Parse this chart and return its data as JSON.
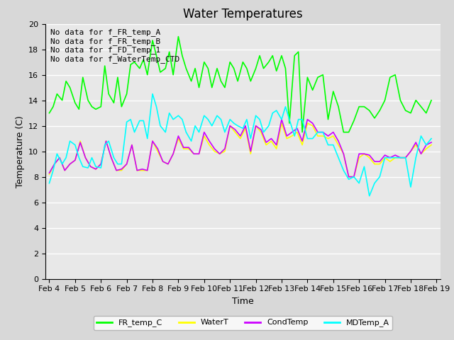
{
  "title": "Water Temperatures",
  "xlabel": "Time",
  "ylabel": "Temperature (C)",
  "ylim": [
    0,
    20
  ],
  "yticks": [
    0,
    2,
    4,
    6,
    8,
    10,
    12,
    14,
    16,
    18,
    20
  ],
  "series": {
    "FR_temp_C": {
      "color": "#00ff00",
      "linewidth": 1.2,
      "x_days": [
        4.0,
        4.15,
        4.3,
        4.5,
        4.65,
        4.8,
        5.0,
        5.15,
        5.3,
        5.5,
        5.65,
        5.8,
        6.0,
        6.15,
        6.3,
        6.5,
        6.65,
        6.8,
        7.0,
        7.15,
        7.3,
        7.5,
        7.65,
        7.8,
        8.0,
        8.15,
        8.3,
        8.5,
        8.65,
        8.8,
        9.0,
        9.15,
        9.3,
        9.5,
        9.65,
        9.8,
        10.0,
        10.15,
        10.3,
        10.5,
        10.65,
        10.8,
        11.0,
        11.15,
        11.3,
        11.5,
        11.65,
        11.8,
        12.0,
        12.15,
        12.3,
        12.5,
        12.65,
        12.8,
        13.0,
        13.15,
        13.3,
        13.5,
        13.65,
        13.8,
        14.0,
        14.2,
        14.4,
        14.6,
        14.8,
        15.0,
        15.2,
        15.4,
        15.6,
        15.8,
        16.0,
        16.2,
        16.4,
        16.6,
        16.8,
        17.0,
        17.2,
        17.4,
        17.6,
        17.8,
        18.0,
        18.2,
        18.4,
        18.6,
        18.8
      ],
      "y": [
        13.0,
        13.5,
        14.5,
        14.0,
        15.5,
        15.0,
        13.8,
        13.3,
        15.8,
        14.0,
        13.5,
        13.3,
        13.5,
        16.7,
        14.5,
        13.8,
        15.8,
        13.5,
        14.5,
        16.8,
        17.0,
        16.5,
        17.2,
        16.0,
        18.7,
        17.5,
        16.2,
        16.5,
        17.8,
        16.0,
        19.0,
        17.5,
        16.5,
        15.5,
        16.5,
        15.0,
        17.0,
        16.5,
        15.0,
        16.5,
        15.5,
        15.0,
        17.0,
        16.5,
        15.5,
        17.0,
        16.5,
        15.5,
        16.5,
        17.5,
        16.5,
        17.0,
        17.5,
        16.3,
        17.5,
        16.5,
        12.2,
        17.5,
        17.8,
        11.5,
        15.8,
        14.8,
        15.8,
        16.0,
        12.5,
        14.7,
        13.5,
        11.5,
        11.5,
        12.4,
        13.5,
        13.5,
        13.2,
        12.6,
        13.2,
        14.0,
        15.8,
        16.0,
        14.0,
        13.2,
        13.0,
        14.0,
        13.5,
        13.0,
        14.0
      ]
    },
    "WaterT": {
      "color": "#ffff00",
      "linewidth": 1.2,
      "x_days": [
        4.0,
        4.2,
        4.4,
        4.6,
        4.8,
        5.0,
        5.2,
        5.4,
        5.6,
        5.8,
        6.0,
        6.2,
        6.4,
        6.6,
        6.8,
        7.0,
        7.2,
        7.4,
        7.6,
        7.8,
        8.0,
        8.2,
        8.4,
        8.6,
        8.8,
        9.0,
        9.2,
        9.4,
        9.6,
        9.8,
        10.0,
        10.2,
        10.4,
        10.6,
        10.8,
        11.0,
        11.2,
        11.4,
        11.6,
        11.8,
        12.0,
        12.2,
        12.4,
        12.6,
        12.8,
        13.0,
        13.2,
        13.4,
        13.6,
        13.8,
        14.0,
        14.2,
        14.4,
        14.6,
        14.8,
        15.0,
        15.2,
        15.4,
        15.6,
        15.8,
        16.0,
        16.2,
        16.4,
        16.6,
        16.8,
        17.0,
        17.2,
        17.4,
        17.6,
        17.8,
        18.0,
        18.2,
        18.4,
        18.6,
        18.8
      ],
      "y": [
        8.2,
        9.0,
        9.5,
        8.5,
        9.0,
        9.3,
        10.8,
        9.5,
        8.8,
        8.6,
        9.0,
        10.8,
        9.5,
        8.5,
        8.5,
        9.0,
        10.5,
        8.5,
        8.5,
        8.5,
        10.8,
        10.0,
        9.2,
        9.0,
        9.8,
        11.0,
        10.2,
        10.2,
        9.8,
        9.8,
        11.2,
        10.5,
        10.0,
        9.8,
        10.0,
        12.0,
        11.5,
        11.0,
        11.8,
        9.8,
        12.0,
        11.5,
        10.5,
        10.8,
        10.2,
        12.2,
        11.0,
        11.2,
        11.5,
        10.5,
        12.2,
        12.0,
        11.2,
        11.2,
        11.0,
        11.2,
        10.5,
        9.8,
        8.0,
        8.0,
        9.5,
        9.8,
        9.5,
        9.0,
        9.0,
        9.5,
        9.2,
        9.5,
        9.5,
        9.5,
        10.0,
        10.5,
        9.8,
        10.2,
        10.5
      ]
    },
    "CondTemp": {
      "color": "#cc00ff",
      "linewidth": 1.2,
      "x_days": [
        4.0,
        4.2,
        4.4,
        4.6,
        4.8,
        5.0,
        5.2,
        5.4,
        5.6,
        5.8,
        6.0,
        6.2,
        6.4,
        6.6,
        6.8,
        7.0,
        7.2,
        7.4,
        7.6,
        7.8,
        8.0,
        8.2,
        8.4,
        8.6,
        8.8,
        9.0,
        9.2,
        9.4,
        9.6,
        9.8,
        10.0,
        10.2,
        10.4,
        10.6,
        10.8,
        11.0,
        11.2,
        11.4,
        11.6,
        11.8,
        12.0,
        12.2,
        12.4,
        12.6,
        12.8,
        13.0,
        13.2,
        13.4,
        13.6,
        13.8,
        14.0,
        14.2,
        14.4,
        14.6,
        14.8,
        15.0,
        15.2,
        15.4,
        15.6,
        15.8,
        16.0,
        16.2,
        16.4,
        16.6,
        16.8,
        17.0,
        17.2,
        17.4,
        17.6,
        17.8,
        18.0,
        18.2,
        18.4,
        18.6,
        18.8
      ],
      "y": [
        8.3,
        9.0,
        9.5,
        8.5,
        9.0,
        9.3,
        10.7,
        9.5,
        8.8,
        8.6,
        9.0,
        10.8,
        9.5,
        8.5,
        8.6,
        9.0,
        10.5,
        8.5,
        8.6,
        8.5,
        10.8,
        10.2,
        9.2,
        9.0,
        9.8,
        11.2,
        10.3,
        10.3,
        9.8,
        9.8,
        11.5,
        10.8,
        10.2,
        9.8,
        10.2,
        12.0,
        11.7,
        11.2,
        12.0,
        10.0,
        12.0,
        11.7,
        10.7,
        11.0,
        10.5,
        12.5,
        11.2,
        11.5,
        11.8,
        10.8,
        12.5,
        12.2,
        11.5,
        11.5,
        11.2,
        11.5,
        10.8,
        9.8,
        8.0,
        8.0,
        9.8,
        9.8,
        9.7,
        9.2,
        9.2,
        9.7,
        9.5,
        9.7,
        9.5,
        9.5,
        10.0,
        10.7,
        9.8,
        10.5,
        10.7
      ]
    },
    "MDTemp_A": {
      "color": "#00ffff",
      "linewidth": 1.2,
      "x_days": [
        4.0,
        4.15,
        4.3,
        4.5,
        4.65,
        4.8,
        5.0,
        5.15,
        5.3,
        5.5,
        5.65,
        5.8,
        6.0,
        6.15,
        6.3,
        6.5,
        6.65,
        6.8,
        7.0,
        7.15,
        7.3,
        7.5,
        7.65,
        7.8,
        8.0,
        8.15,
        8.3,
        8.5,
        8.65,
        8.8,
        9.0,
        9.15,
        9.3,
        9.5,
        9.65,
        9.8,
        10.0,
        10.15,
        10.3,
        10.5,
        10.65,
        10.8,
        11.0,
        11.15,
        11.3,
        11.5,
        11.65,
        11.8,
        12.0,
        12.15,
        12.3,
        12.5,
        12.65,
        12.8,
        13.0,
        13.15,
        13.3,
        13.5,
        13.65,
        13.8,
        14.0,
        14.2,
        14.4,
        14.6,
        14.8,
        15.0,
        15.2,
        15.4,
        15.6,
        15.8,
        16.0,
        16.2,
        16.4,
        16.6,
        16.8,
        17.0,
        17.2,
        17.4,
        17.6,
        17.8,
        18.0,
        18.2,
        18.4,
        18.6,
        18.8
      ],
      "y": [
        7.5,
        8.5,
        9.8,
        9.0,
        9.5,
        10.8,
        10.5,
        9.5,
        8.8,
        8.7,
        9.5,
        8.8,
        8.7,
        10.5,
        10.8,
        9.5,
        9.0,
        9.0,
        12.3,
        12.5,
        11.5,
        12.4,
        12.4,
        11.0,
        14.5,
        13.5,
        12.0,
        11.5,
        13.0,
        12.5,
        12.8,
        12.5,
        11.5,
        10.8,
        12.0,
        11.5,
        12.8,
        12.5,
        12.0,
        12.8,
        12.5,
        11.5,
        12.5,
        12.2,
        12.0,
        11.8,
        12.5,
        11.0,
        12.8,
        12.5,
        11.5,
        12.0,
        13.0,
        13.2,
        12.5,
        13.5,
        12.5,
        11.2,
        12.5,
        12.5,
        11.0,
        11.0,
        11.5,
        11.5,
        10.5,
        10.5,
        9.5,
        8.5,
        7.8,
        8.0,
        7.5,
        8.8,
        6.5,
        7.5,
        8.0,
        9.5,
        9.5,
        9.5,
        9.5,
        9.5,
        7.2,
        9.5,
        11.2,
        10.5,
        11.0
      ]
    }
  },
  "legend_entries": [
    "FR_temp_C",
    "WaterT",
    "CondTemp",
    "MDTemp_A"
  ],
  "legend_colors": [
    "#00ff00",
    "#ffff00",
    "#cc00ff",
    "#00ffff"
  ],
  "xticklabels": [
    "Feb 4",
    "Feb 5",
    "Feb 6",
    "Feb 7",
    "Feb 8",
    "Feb 9",
    "Feb 10",
    "Feb 11",
    "Feb 12",
    "Feb 13",
    "Feb 14",
    "Feb 15",
    "Feb 16",
    "Feb 17",
    "Feb 18",
    "Feb 19"
  ],
  "xtick_positions": [
    4,
    5,
    6,
    7,
    8,
    9,
    10,
    11,
    12,
    13,
    14,
    15,
    16,
    17,
    18,
    19
  ],
  "annotation_lines": [
    "No data for f_FR_temp_A",
    "No data for f_FR_temp_B",
    "No data for f_FD_Temp_1",
    "No data for f_WaterTemp_CTD"
  ],
  "xlim": [
    3.85,
    19.15
  ],
  "fig_width": 6.4,
  "fig_height": 4.8,
  "dpi": 100,
  "bg_color": "#d8d8d8",
  "plot_bg_color": "#e8e8e8",
  "grid_color": "#ffffff",
  "title_fontsize": 12,
  "tick_fontsize": 8,
  "label_fontsize": 9,
  "annot_fontsize": 8
}
